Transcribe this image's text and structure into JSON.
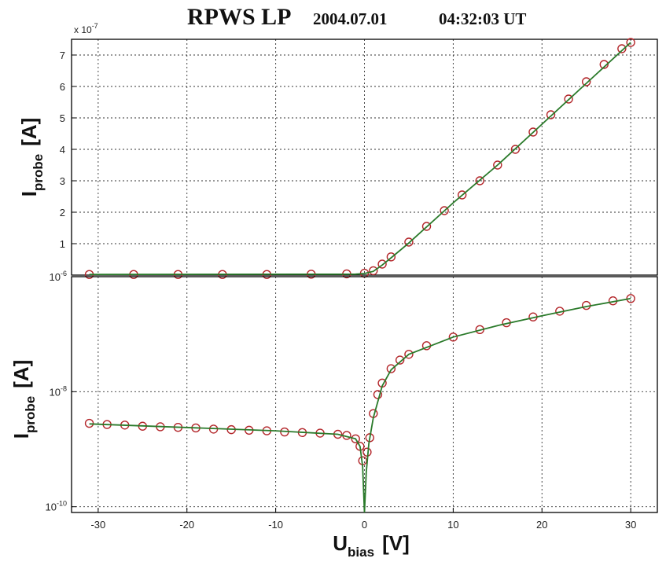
{
  "title": {
    "main": "RPWS LP",
    "date": "2004.07.01",
    "time": "04:32:03 UT"
  },
  "colors": {
    "marker": "#b3262a",
    "fit": "#2a7a2a",
    "grid": "#333333",
    "axes": "#000000"
  },
  "chart_data": [
    {
      "type": "scatter",
      "panel": "top",
      "yscale": "linear",
      "xlim": [
        -33,
        33
      ],
      "ylim": [
        0,
        7.5
      ],
      "yunit_multiplier": "x 10",
      "yunit_exponent": "-7",
      "yticks": [
        "1",
        "2",
        "3",
        "4",
        "5",
        "6",
        "7"
      ],
      "ylabel": {
        "main": "I",
        "sub": "probe",
        "unit": "[A]"
      },
      "grid": true,
      "series": [
        {
          "marker": "circle",
          "x": [
            -31,
            -26,
            -21,
            -16,
            -11,
            -6,
            -2,
            0,
            1,
            2,
            3,
            5,
            7,
            9,
            11,
            13,
            15,
            17,
            19,
            21,
            23,
            25,
            27,
            29,
            30
          ],
          "y": [
            0.02,
            0.02,
            0.02,
            0.02,
            0.02,
            0.03,
            0.04,
            0.06,
            0.14,
            0.35,
            0.58,
            1.05,
            1.55,
            2.05,
            2.55,
            3.0,
            3.5,
            4.0,
            4.55,
            5.1,
            5.6,
            6.15,
            6.7,
            7.2,
            7.4
          ]
        },
        {
          "line": "fit",
          "x": [
            -31,
            -1,
            0,
            1,
            2,
            3,
            5,
            10,
            15,
            20,
            25,
            30
          ],
          "y": [
            0.02,
            0.03,
            0.05,
            0.12,
            0.32,
            0.55,
            1.02,
            2.3,
            3.5,
            4.8,
            6.1,
            7.4
          ]
        }
      ]
    },
    {
      "type": "scatter",
      "panel": "bottom",
      "yscale": "log",
      "xlim": [
        -33,
        33
      ],
      "ylim_log10": [
        -10.1,
        -6
      ],
      "yticks": [
        {
          "base": "10",
          "exp": "-6",
          "value": -6
        },
        {
          "base": "10",
          "exp": "-8",
          "value": -8
        },
        {
          "base": "10",
          "exp": "-10",
          "value": -10
        }
      ],
      "xticks": [
        "-30",
        "-20",
        "-10",
        "0",
        "10",
        "20",
        "30"
      ],
      "xtick_values": [
        -30,
        -20,
        -10,
        0,
        10,
        20,
        30
      ],
      "xlabel": {
        "main": "U",
        "sub": "bias",
        "unit": "[V]"
      },
      "ylabel": {
        "main": "I",
        "sub": "probe",
        "unit": "[A]"
      },
      "grid": true,
      "series": [
        {
          "marker": "circle",
          "x": [
            -31,
            -29,
            -27,
            -25,
            -23,
            -21,
            -19,
            -17,
            -15,
            -13,
            -11,
            -9,
            -7,
            -5,
            -3,
            -2,
            -1,
            -0.5,
            -0.2,
            0.3,
            0.6,
            1,
            1.5,
            2,
            3,
            4,
            5,
            7,
            10,
            13,
            16,
            19,
            22,
            25,
            28,
            30
          ],
          "y_log10": [
            -8.55,
            -8.57,
            -8.58,
            -8.6,
            -8.61,
            -8.62,
            -8.63,
            -8.65,
            -8.66,
            -8.67,
            -8.68,
            -8.7,
            -8.71,
            -8.72,
            -8.74,
            -8.76,
            -8.82,
            -8.95,
            -9.2,
            -9.05,
            -8.8,
            -8.38,
            -8.05,
            -7.85,
            -7.6,
            -7.45,
            -7.35,
            -7.2,
            -7.05,
            -6.92,
            -6.8,
            -6.7,
            -6.6,
            -6.5,
            -6.42,
            -6.38
          ]
        },
        {
          "line": "fit",
          "x": [
            -31,
            -10,
            -3,
            -1,
            -0.5,
            -0.2,
            0,
            0.2,
            0.5,
            1,
            2,
            3,
            5,
            10,
            15,
            20,
            25,
            30
          ],
          "y_log10": [
            -8.56,
            -8.68,
            -8.74,
            -8.82,
            -8.95,
            -9.3,
            -10.1,
            -9.4,
            -8.9,
            -8.45,
            -7.9,
            -7.62,
            -7.35,
            -7.05,
            -6.85,
            -6.68,
            -6.52,
            -6.38
          ]
        }
      ]
    }
  ]
}
